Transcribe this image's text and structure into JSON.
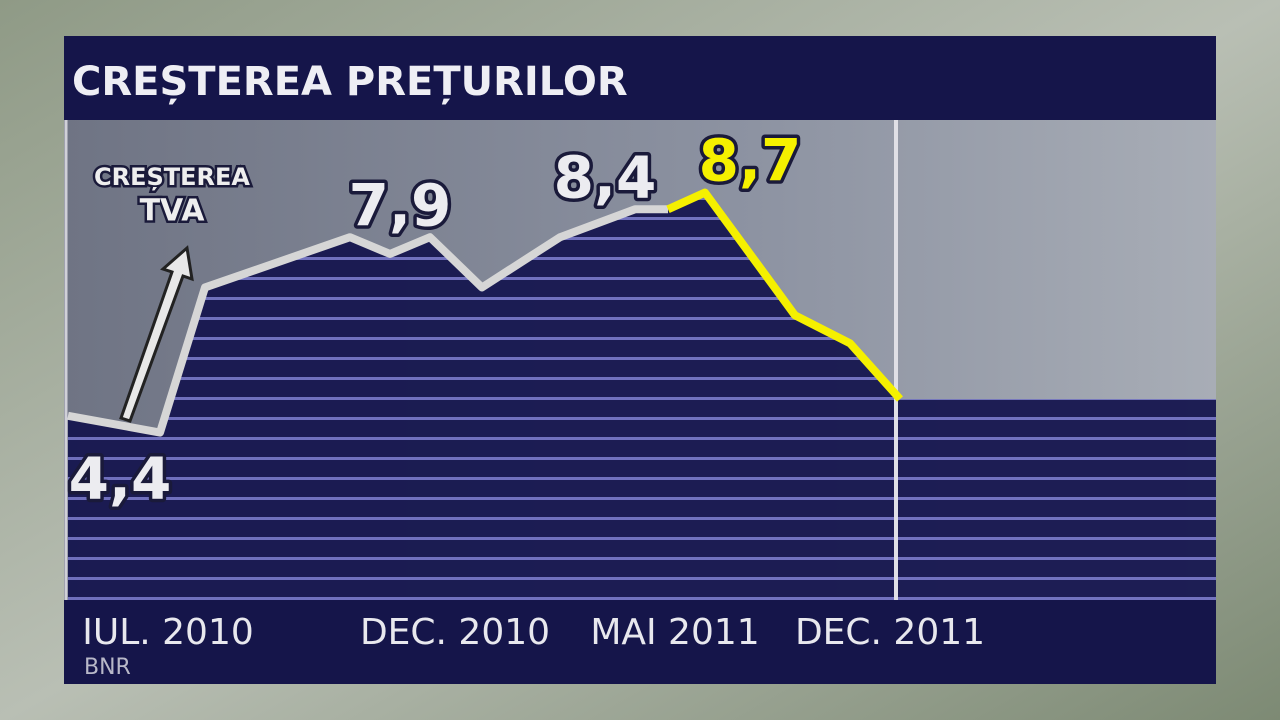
{
  "chart_data": {
    "type": "line",
    "title": "CREȘTEREA PREȚURILOR",
    "annotation": [
      "CREȘTEREA",
      "TVA"
    ],
    "source": "BNR",
    "categories": [
      null,
      "IUL. 2010",
      null,
      null,
      null,
      "DEC. 2010",
      null,
      null,
      null,
      "MAI 2011",
      null,
      null,
      null,
      "DEC. 2011"
    ],
    "category_colors": [
      "#e8e8ee",
      "#e8e8ee",
      "#e8e8ee",
      "#e8e8ee",
      "#e8e8ee",
      "#e8e8ee",
      "#e8e8ee",
      "#e8e8ee",
      "#e8e8ee",
      "#e8e8ee",
      "#e8e8ee",
      "#e8e8ee",
      "#e8e8ee",
      "#f5f000"
    ],
    "series": [
      {
        "color": "#d6d6d6",
        "values": [
          4.7,
          4.4,
          7.0,
          7.9,
          7.6,
          7.9,
          7.0,
          7.9,
          8.4,
          8.4,
          null,
          null,
          null,
          null
        ],
        "value_labels": [
          null,
          "4,4",
          null,
          null,
          null,
          "7,9",
          null,
          null,
          "8,4",
          null,
          null,
          null,
          null,
          null
        ]
      },
      {
        "color": "#f5f000",
        "values": [
          null,
          null,
          null,
          null,
          null,
          null,
          null,
          null,
          null,
          8.4,
          8.7,
          6.5,
          6.0,
          5.0
        ],
        "value_labels": [
          null,
          null,
          null,
          null,
          null,
          null,
          null,
          null,
          null,
          null,
          "8,7",
          null,
          null,
          null
        ]
      }
    ],
    "ylim": [
      1.4,
      10
    ]
  }
}
